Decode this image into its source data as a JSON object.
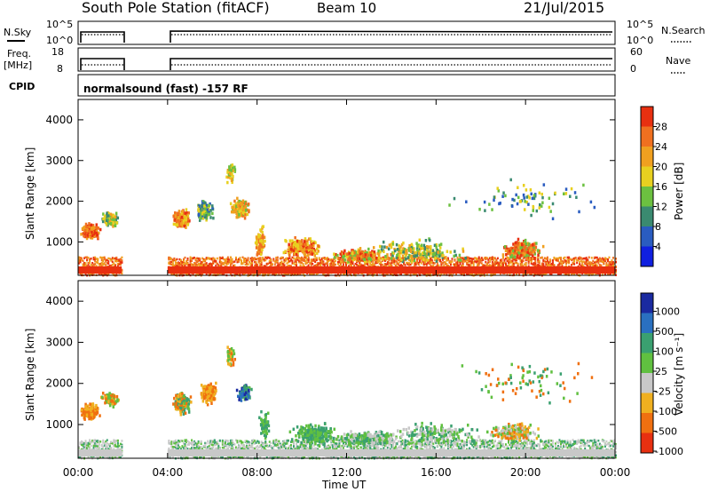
{
  "header": {
    "station": "South Pole Station (fitACF)",
    "beam": "Beam 10",
    "date": "21/Jul/2015"
  },
  "panels": {
    "nsky": {
      "label": "N.Sky",
      "tick_top": "10^5",
      "tick_bottom": "10^0",
      "right_label": "N.Search",
      "right_tick_top": "10^5",
      "right_tick_bottom": "10^0"
    },
    "freq": {
      "label": "Freq.",
      "unit": "[MHz]",
      "tick_top": "18",
      "tick_bottom": "8",
      "right_label": "Nave",
      "right_tick_top": "60",
      "right_tick_bottom": "0"
    },
    "cpid": {
      "label": "CPID",
      "text": "normalsound (fast) -157 RF"
    }
  },
  "chart_data": [
    {
      "type": "heatmap",
      "name": "power-panel",
      "ylabel": "Slant Range [km]",
      "xlabel": "",
      "y_ticks": [
        "1000",
        "2000",
        "3000",
        "4000"
      ],
      "colorbar_label": "Power [dB]",
      "colorbar_ticks": [
        "4",
        "8",
        "12",
        "16",
        "20",
        "24",
        "28"
      ],
      "colors": [
        "#1020e0",
        "#2a5cc0",
        "#3a8a70",
        "#6cc040",
        "#e8d020",
        "#f0a020",
        "#f07020",
        "#e83010"
      ]
    },
    {
      "type": "heatmap",
      "name": "velocity-panel",
      "ylabel": "Slant Range [km]",
      "xlabel": "Time UT",
      "y_ticks": [
        "1000",
        "2000",
        "3000",
        "4000"
      ],
      "x_ticks": [
        "00:00",
        "04:00",
        "08:00",
        "12:00",
        "16:00",
        "20:00",
        "00:00"
      ],
      "colorbar_label": "Velocity [m s⁻¹]",
      "colorbar_ticks": [
        "1000",
        "500",
        "100",
        "25",
        "-25",
        "-100",
        "-500",
        "-1000"
      ],
      "colors": [
        "#1a2aa0",
        "#2a70c0",
        "#3aa070",
        "#60c040",
        "#c8c8c8",
        "#f0b020",
        "#f07010",
        "#e83010"
      ]
    }
  ]
}
